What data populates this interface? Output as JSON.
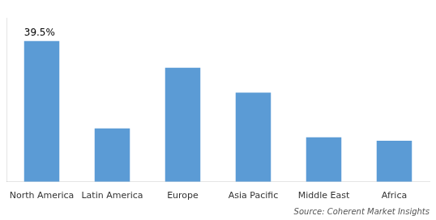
{
  "chart_data": {
    "type": "bar",
    "categories": [
      "North America",
      "Latin America",
      "Europe",
      "Asia Pacific",
      "Middle East",
      "Africa"
    ],
    "values": [
      39.5,
      15.0,
      32.0,
      25.0,
      12.5,
      11.5
    ],
    "color": "#5B9BD5",
    "ylim": [
      0,
      46
    ],
    "grid": false,
    "tick_labels": "x",
    "annotations": [
      {
        "text": "39.5%",
        "x": "North America",
        "y": 39.5
      }
    ],
    "source": "Source: Coherent Market Insights"
  }
}
